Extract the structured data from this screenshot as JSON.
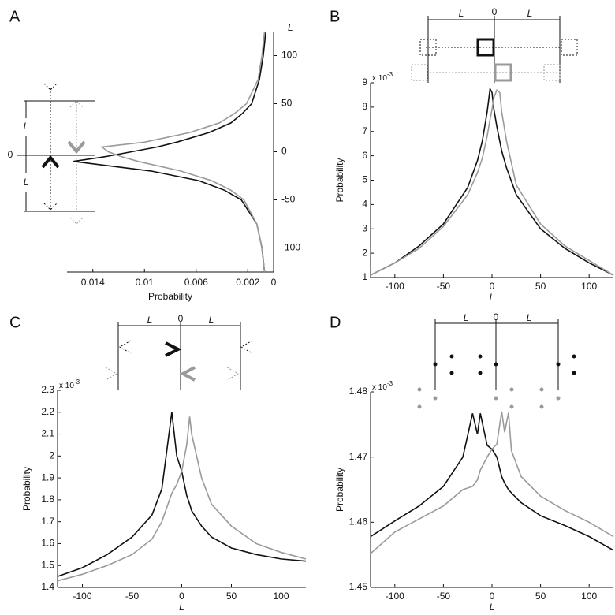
{
  "chart_data": [
    {
      "panel": "A",
      "type": "line",
      "orientation": "horizontal",
      "xlabel": "L",
      "ylabel": "Probability",
      "x": [
        -125,
        -100,
        -75,
        -50,
        -40,
        -30,
        -20,
        -10,
        -5,
        0,
        5,
        10,
        20,
        30,
        40,
        50,
        75,
        100,
        125
      ],
      "xlim": [
        -125,
        125
      ],
      "xticks": [
        -100,
        -50,
        0,
        50,
        100
      ],
      "ylim": [
        0.016,
        0
      ],
      "yticks": [
        0.014,
        0.01,
        0.006,
        0.002,
        0
      ],
      "series": [
        {
          "color": "#111111",
          "values": [
            0.0007,
            0.0009,
            0.0013,
            0.0025,
            0.0038,
            0.0058,
            0.0095,
            0.0155,
            0.013,
            0.011,
            0.009,
            0.0075,
            0.005,
            0.0033,
            0.0024,
            0.0017,
            0.0011,
            0.0008,
            0.0006
          ]
        },
        {
          "color": "#9a9a9a",
          "values": [
            0.0007,
            0.0009,
            0.0013,
            0.0023,
            0.0033,
            0.0048,
            0.0072,
            0.0105,
            0.0118,
            0.0128,
            0.0133,
            0.01,
            0.0065,
            0.0042,
            0.003,
            0.0021,
            0.0012,
            0.0009,
            0.0007
          ]
        }
      ],
      "schematic_labels": [
        "L",
        "0",
        "L"
      ]
    },
    {
      "panel": "B",
      "type": "line",
      "xlabel": "L",
      "ylabel": "Probability",
      "multiplier": {
        "base": "x 10",
        "exponent": "-3"
      },
      "x": [
        -125,
        -100,
        -75,
        -50,
        -25,
        -15,
        -10,
        -5,
        -2,
        0,
        2,
        5,
        8,
        10,
        15,
        25,
        50,
        75,
        100,
        125
      ],
      "xlim": [
        -125,
        125
      ],
      "xticks": [
        -100,
        -50,
        0,
        50,
        100
      ],
      "ylim": [
        1,
        9
      ],
      "yticks": [
        1,
        2,
        3,
        4,
        5,
        6,
        7,
        8,
        9
      ],
      "series": [
        {
          "color": "#111111",
          "values": [
            1.1,
            1.6,
            2.3,
            3.2,
            4.7,
            5.8,
            6.6,
            7.8,
            8.75,
            8.6,
            7.9,
            7.2,
            6.6,
            6.2,
            5.5,
            4.4,
            3.0,
            2.2,
            1.6,
            1.1
          ]
        },
        {
          "color": "#9a9a9a",
          "values": [
            1.1,
            1.6,
            2.2,
            3.1,
            4.4,
            5.3,
            5.9,
            6.8,
            7.5,
            7.9,
            8.4,
            8.7,
            8.6,
            7.8,
            6.6,
            4.8,
            3.2,
            2.3,
            1.7,
            1.1
          ]
        }
      ],
      "schematic_labels": [
        "L",
        "0",
        "L"
      ]
    },
    {
      "panel": "C",
      "type": "line",
      "xlabel": "L",
      "ylabel": "Probability",
      "multiplier": {
        "base": "x 10",
        "exponent": "-3"
      },
      "x": [
        -125,
        -100,
        -75,
        -50,
        -30,
        -20,
        -10,
        -5,
        0,
        5,
        8,
        10,
        20,
        30,
        50,
        75,
        100,
        125
      ],
      "xlim": [
        -125,
        125
      ],
      "xticks": [
        -100,
        -50,
        0,
        50,
        100
      ],
      "ylim": [
        1.4,
        2.3
      ],
      "yticks": [
        1.4,
        1.5,
        1.6,
        1.7,
        1.8,
        1.9,
        2,
        2.1,
        2.2,
        2.3
      ],
      "series": [
        {
          "color": "#111111",
          "values": [
            1.45,
            1.49,
            1.55,
            1.63,
            1.73,
            1.85,
            2.2,
            2.0,
            1.93,
            1.82,
            1.78,
            1.75,
            1.68,
            1.63,
            1.58,
            1.55,
            1.53,
            1.52
          ]
        },
        {
          "color": "#9a9a9a",
          "values": [
            1.43,
            1.46,
            1.5,
            1.55,
            1.62,
            1.7,
            1.83,
            1.87,
            1.93,
            2.05,
            2.18,
            2.1,
            1.9,
            1.78,
            1.68,
            1.6,
            1.56,
            1.53
          ]
        }
      ],
      "schematic_labels": [
        "L",
        "0",
        "L"
      ]
    },
    {
      "panel": "D",
      "type": "line",
      "xlabel": "L",
      "ylabel": "Probability",
      "multiplier": {
        "base": "x 10",
        "exponent": "-3"
      },
      "x": [
        -125,
        -100,
        -75,
        -50,
        -30,
        -20,
        -15,
        -12,
        -5,
        0,
        5,
        10,
        13,
        17,
        20,
        30,
        50,
        75,
        100,
        125
      ],
      "xlim": [
        -125,
        125
      ],
      "xticks": [
        -100,
        -50,
        0,
        50,
        100
      ],
      "ylim": [
        1.45,
        1.48
      ],
      "yticks": [
        1.45,
        1.46,
        1.47,
        1.48
      ],
      "series": [
        {
          "color": "#111111",
          "values": [
            1.4578,
            1.4602,
            1.4625,
            1.4655,
            1.47,
            1.4767,
            1.4735,
            1.4767,
            1.4718,
            1.4712,
            1.47,
            1.467,
            1.466,
            1.465,
            1.4645,
            1.463,
            1.461,
            1.4595,
            1.4578,
            1.4557
          ]
        },
        {
          "color": "#9a9a9a",
          "values": [
            1.4552,
            1.4585,
            1.4605,
            1.4625,
            1.465,
            1.4655,
            1.4665,
            1.468,
            1.47,
            1.4712,
            1.472,
            1.477,
            1.4738,
            1.4768,
            1.471,
            1.467,
            1.464,
            1.4618,
            1.46,
            1.4578
          ]
        }
      ],
      "schematic_labels": [
        "L",
        "0",
        "L"
      ]
    }
  ]
}
